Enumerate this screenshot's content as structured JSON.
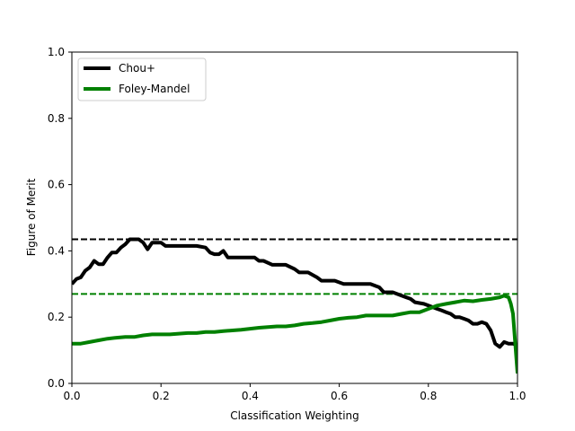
{
  "chart_data": {
    "type": "line",
    "title": "",
    "xlabel": "Classification Weighting",
    "ylabel": "Figure of Merit",
    "xlim": [
      0,
      1
    ],
    "ylim": [
      0,
      1
    ],
    "xticks": [
      "0.0",
      "0.2",
      "0.4",
      "0.6",
      "0.8",
      "1.0"
    ],
    "yticks": [
      "0.0",
      "0.2",
      "0.4",
      "0.6",
      "0.8",
      "1.0"
    ],
    "grid": false,
    "legend_position": "upper-left",
    "series": [
      {
        "name": "Chou+",
        "color": "#000000",
        "x": [
          0.0,
          0.01,
          0.02,
          0.03,
          0.04,
          0.05,
          0.06,
          0.07,
          0.08,
          0.09,
          0.1,
          0.11,
          0.12,
          0.13,
          0.14,
          0.15,
          0.16,
          0.17,
          0.18,
          0.19,
          0.2,
          0.21,
          0.22,
          0.25,
          0.28,
          0.3,
          0.31,
          0.32,
          0.33,
          0.34,
          0.35,
          0.38,
          0.41,
          0.42,
          0.43,
          0.45,
          0.48,
          0.5,
          0.51,
          0.53,
          0.55,
          0.56,
          0.58,
          0.59,
          0.61,
          0.63,
          0.65,
          0.67,
          0.69,
          0.7,
          0.72,
          0.74,
          0.75,
          0.76,
          0.77,
          0.79,
          0.8,
          0.81,
          0.82,
          0.83,
          0.84,
          0.85,
          0.86,
          0.87,
          0.88,
          0.89,
          0.9,
          0.91,
          0.92,
          0.93,
          0.94,
          0.95,
          0.96,
          0.97,
          0.98,
          0.99,
          1.0
        ],
        "y": [
          0.3,
          0.315,
          0.32,
          0.34,
          0.35,
          0.37,
          0.36,
          0.36,
          0.38,
          0.395,
          0.395,
          0.41,
          0.42,
          0.435,
          0.435,
          0.435,
          0.425,
          0.405,
          0.425,
          0.425,
          0.425,
          0.415,
          0.415,
          0.415,
          0.415,
          0.41,
          0.395,
          0.39,
          0.39,
          0.4,
          0.38,
          0.38,
          0.38,
          0.37,
          0.37,
          0.358,
          0.358,
          0.345,
          0.335,
          0.335,
          0.32,
          0.31,
          0.31,
          0.31,
          0.3,
          0.3,
          0.3,
          0.3,
          0.29,
          0.275,
          0.275,
          0.265,
          0.26,
          0.255,
          0.245,
          0.24,
          0.235,
          0.23,
          0.225,
          0.22,
          0.215,
          0.21,
          0.2,
          0.2,
          0.195,
          0.19,
          0.18,
          0.18,
          0.185,
          0.18,
          0.16,
          0.12,
          0.11,
          0.125,
          0.12,
          0.12,
          0.115
        ]
      },
      {
        "name": "Foley-Mandel",
        "color": "#008000",
        "x": [
          0.0,
          0.02,
          0.04,
          0.06,
          0.08,
          0.1,
          0.12,
          0.14,
          0.16,
          0.18,
          0.2,
          0.22,
          0.24,
          0.26,
          0.28,
          0.3,
          0.32,
          0.34,
          0.36,
          0.38,
          0.4,
          0.42,
          0.44,
          0.46,
          0.48,
          0.5,
          0.52,
          0.54,
          0.56,
          0.58,
          0.6,
          0.62,
          0.64,
          0.66,
          0.68,
          0.7,
          0.72,
          0.74,
          0.76,
          0.78,
          0.8,
          0.82,
          0.84,
          0.86,
          0.88,
          0.9,
          0.92,
          0.94,
          0.96,
          0.97,
          0.98,
          0.985,
          0.99,
          0.995,
          1.0
        ],
        "y": [
          0.12,
          0.12,
          0.125,
          0.13,
          0.135,
          0.138,
          0.14,
          0.14,
          0.145,
          0.148,
          0.148,
          0.148,
          0.15,
          0.152,
          0.152,
          0.155,
          0.155,
          0.158,
          0.16,
          0.162,
          0.165,
          0.168,
          0.17,
          0.172,
          0.172,
          0.175,
          0.18,
          0.182,
          0.185,
          0.19,
          0.195,
          0.198,
          0.2,
          0.205,
          0.205,
          0.205,
          0.205,
          0.21,
          0.215,
          0.215,
          0.225,
          0.235,
          0.24,
          0.245,
          0.25,
          0.248,
          0.252,
          0.255,
          0.26,
          0.265,
          0.26,
          0.24,
          0.21,
          0.12,
          0.03
        ]
      }
    ],
    "reference_lines": [
      {
        "name": "Chou+ max",
        "y": 0.435,
        "color": "#000000",
        "style": "dashed"
      },
      {
        "name": "Foley-Mandel max",
        "y": 0.27,
        "color": "#008000",
        "style": "dashed"
      }
    ]
  }
}
